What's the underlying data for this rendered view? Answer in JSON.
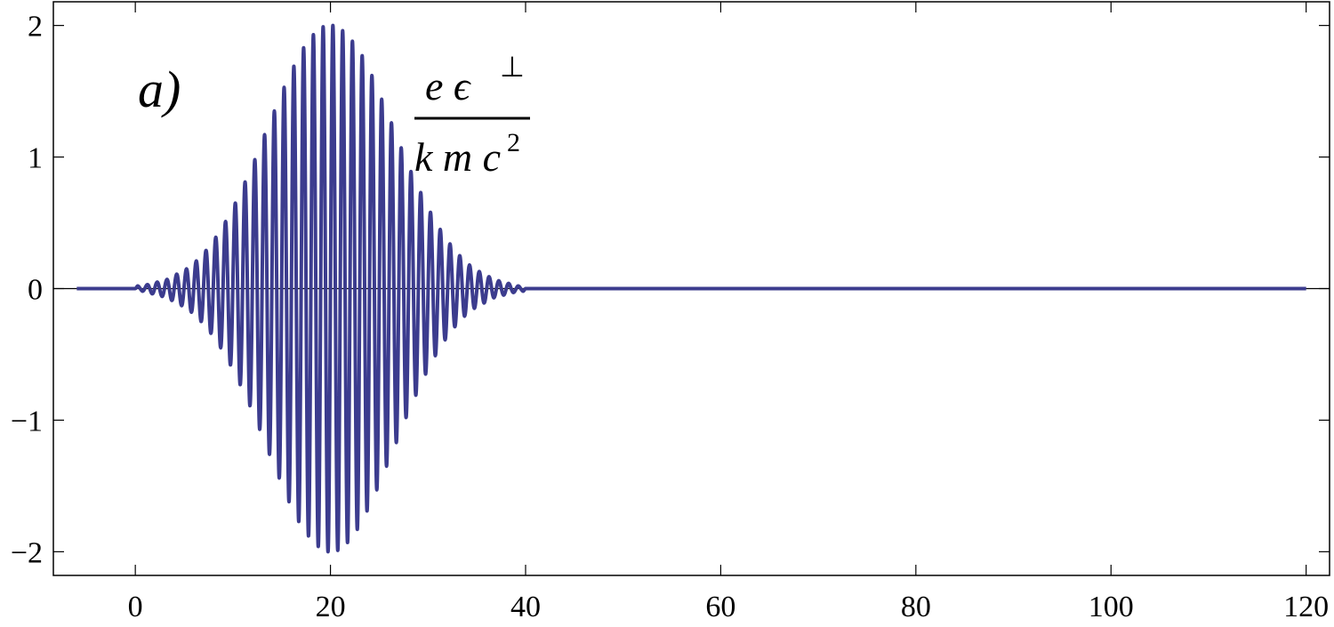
{
  "chart_data": {
    "type": "line",
    "annotations": {
      "panel_label": "a)",
      "numerator": "e ϵ",
      "numerator_sup": "⊥",
      "denominator": "k m c",
      "denominator_sup": "2"
    },
    "color": "#3c3c8e",
    "x": [
      -6,
      0,
      0.25,
      0.75,
      1.25,
      1.75,
      2.25,
      2.75,
      3.25,
      3.75,
      4.25,
      4.75,
      5.25,
      5.75,
      6.25,
      6.75,
      7.25,
      7.75,
      8.25,
      8.75,
      9.25,
      9.75,
      10.25,
      10.75,
      11.25,
      11.75,
      12.25,
      12.75,
      13.25,
      13.75,
      14.25,
      14.75,
      15.25,
      15.75,
      16.25,
      16.75,
      17.25,
      17.75,
      18.25,
      18.75,
      19.25,
      19.75,
      20.25,
      20.75,
      21.25,
      21.75,
      22.25,
      22.75,
      23.25,
      23.75,
      24.25,
      24.75,
      25.25,
      25.75,
      26.25,
      26.75,
      27.25,
      27.75,
      28.25,
      28.75,
      29.25,
      29.75,
      30.25,
      30.75,
      31.25,
      31.75,
      32.25,
      32.75,
      33.25,
      33.75,
      34.25,
      34.75,
      35.25,
      35.75,
      36.25,
      36.75,
      37.25,
      37.75,
      38.25,
      38.75,
      39.25,
      39.75,
      40,
      120
    ],
    "values": [
      0,
      0,
      0.02,
      -0.02,
      0.03,
      -0.04,
      0.05,
      -0.06,
      0.07,
      -0.09,
      0.11,
      -0.13,
      0.15,
      -0.18,
      0.21,
      -0.25,
      0.29,
      -0.34,
      0.39,
      -0.45,
      0.51,
      -0.58,
      0.65,
      -0.73,
      0.81,
      -0.89,
      0.98,
      -1.07,
      1.17,
      -1.26,
      1.35,
      -1.44,
      1.53,
      -1.62,
      1.69,
      -1.77,
      1.83,
      -1.88,
      1.93,
      -1.96,
      1.99,
      -2,
      2,
      -1.99,
      1.96,
      -1.93,
      1.88,
      -1.83,
      1.77,
      -1.69,
      1.62,
      -1.53,
      1.44,
      -1.35,
      1.26,
      -1.17,
      1.07,
      -0.98,
      0.89,
      -0.81,
      0.73,
      -0.65,
      0.58,
      -0.51,
      0.45,
      -0.39,
      0.34,
      -0.29,
      0.25,
      -0.21,
      0.18,
      -0.15,
      0.13,
      -0.11,
      0.09,
      -0.07,
      0.06,
      -0.05,
      0.04,
      -0.03,
      0.02,
      -0.02,
      0,
      0
    ],
    "xlim": [
      -8.4,
      122.4
    ],
    "ylim": [
      -2.18,
      2.18
    ],
    "xticks": [
      0,
      20,
      40,
      60,
      80,
      100,
      120
    ],
    "yticks": [
      {
        "value": -2,
        "label": "−2"
      },
      {
        "value": -1,
        "label": "−1"
      },
      0,
      1,
      2
    ]
  }
}
